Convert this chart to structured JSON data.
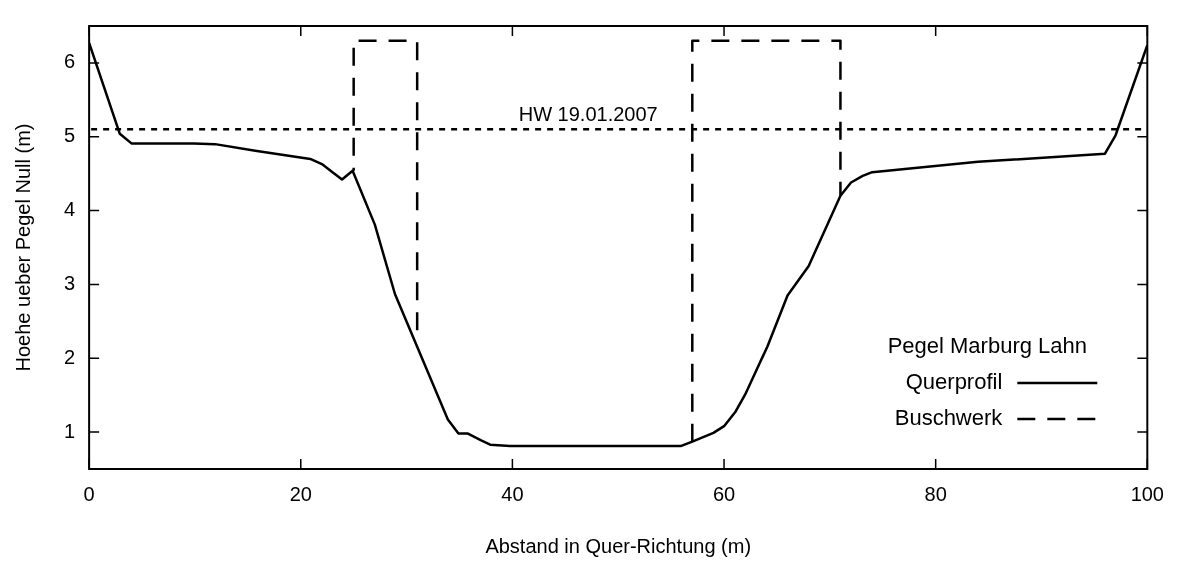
{
  "chart_data": {
    "type": "line",
    "xlabel": "Abstand in Quer-Richtung (m)",
    "ylabel": "Hoehe ueber Pegel Null (m)",
    "legend_title": "Pegel Marburg Lahn",
    "legend": "bottom right",
    "grid": false,
    "marker": "none",
    "xlim": [
      0,
      100
    ],
    "xticks": [
      0,
      20,
      40,
      60,
      80,
      100
    ],
    "ylim": [
      0.5,
      6.5
    ],
    "yticks": [
      1,
      2,
      3,
      4,
      5,
      6
    ],
    "series": [
      {
        "name": "Querprofil",
        "color": "#000000",
        "line_style": "solid",
        "x": [
          0,
          2.9,
          4.0,
          9.9,
          11.9,
          15.7,
          20.9,
          22.0,
          23.0,
          23.9,
          24.9,
          27.0,
          28.9,
          33.9,
          34.9,
          35.8,
          37.0,
          37.9,
          39.9,
          55.9,
          57.0,
          59.0,
          60.0,
          61.1,
          62.0,
          64.1,
          66.0,
          68.0,
          71.0,
          72.0,
          73.1,
          74.0,
          84.0,
          96.0,
          97.0,
          100
        ],
        "values": [
          6.27,
          5.04,
          4.91,
          4.91,
          4.9,
          4.81,
          4.7,
          4.63,
          4.52,
          4.42,
          4.54,
          3.81,
          2.87,
          1.17,
          0.98,
          0.98,
          0.89,
          0.83,
          0.81,
          0.81,
          0.87,
          0.99,
          1.08,
          1.28,
          1.51,
          2.16,
          2.85,
          3.25,
          4.2,
          4.38,
          4.47,
          4.52,
          4.66,
          4.77,
          5.02,
          6.24
        ]
      },
      {
        "name": "Buschwerk",
        "color": "#000000",
        "line_style": "dashed",
        "x": [
          31,
          31,
          25,
          25,
          41,
          57,
          57,
          71,
          71
        ],
        "values": [
          2.38,
          6.3,
          6.3,
          4.54,
          null,
          0.87,
          6.3,
          6.3,
          4.2
        ]
      }
    ],
    "ref_lines": [
      {
        "axis": "y",
        "value": 5.1,
        "label": "HW 19.01.2007",
        "color": "#000000",
        "line_style": "dotted"
      }
    ]
  }
}
